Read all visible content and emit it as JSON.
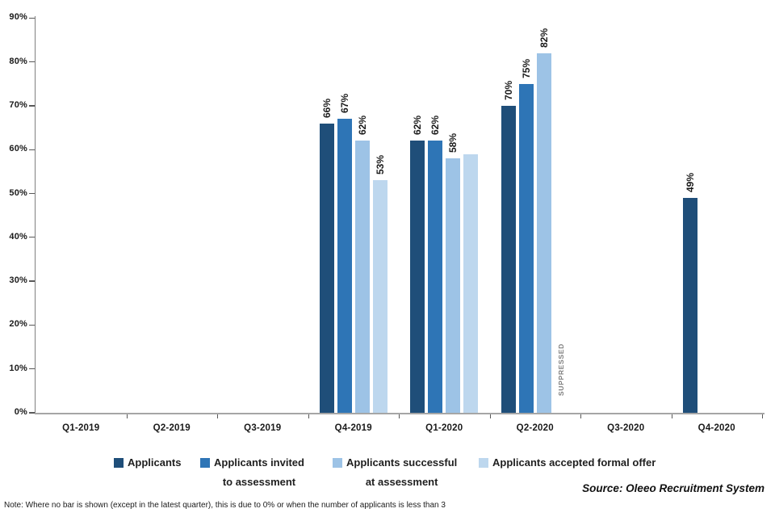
{
  "chart_data": {
    "type": "bar",
    "title": "",
    "xlabel": "",
    "ylabel": "",
    "categories": [
      "Q1-2019",
      "Q2-2019",
      "Q3-2019",
      "Q4-2019",
      "Q1-2020",
      "Q2-2020",
      "Q3-2020",
      "Q4-2020"
    ],
    "series": [
      {
        "name": "Applicants",
        "color": "#1F4E79",
        "values": [
          null,
          null,
          null,
          66,
          62,
          70,
          null,
          49
        ],
        "labels": [
          null,
          null,
          null,
          "66%",
          "62%",
          "70%",
          null,
          "49%"
        ]
      },
      {
        "name": "Applicants invited to assessment",
        "color": "#2E75B6",
        "values": [
          null,
          null,
          null,
          67,
          62,
          75,
          null,
          null
        ],
        "labels": [
          null,
          null,
          null,
          "67%",
          "62%",
          "75%",
          null,
          null
        ]
      },
      {
        "name": "Applicants successful at assessment",
        "color": "#9DC3E6",
        "values": [
          null,
          null,
          null,
          62,
          58,
          82,
          null,
          null
        ],
        "labels": [
          null,
          null,
          null,
          "62%",
          "58%",
          "82%",
          null,
          null
        ]
      },
      {
        "name": "Applicants accepted formal offer",
        "color": "#BDD7EE",
        "values": [
          null,
          null,
          null,
          53,
          59,
          null,
          null,
          null
        ],
        "labels": [
          null,
          null,
          null,
          "53%",
          "",
          null,
          null,
          null
        ]
      }
    ],
    "annotations": [
      {
        "text": "SUPPRESSED",
        "category": "Q2-2020",
        "series_index": 3,
        "color": "#808080"
      }
    ],
    "y_axis": {
      "min": 0,
      "max": 90,
      "tick_step": 10,
      "ticks": [
        "0%",
        "10%",
        "20%",
        "30%",
        "40%",
        "50%",
        "60%",
        "70%",
        "80%",
        "90%"
      ],
      "grid": false
    },
    "legend_position": "bottom"
  },
  "legend": {
    "items": [
      {
        "label": "Applicants",
        "line2": "",
        "color": "#1F4E79"
      },
      {
        "label": "Applicants invited",
        "line2": "to assessment",
        "color": "#2E75B6"
      },
      {
        "label": "Applicants successful",
        "line2": "at assessment",
        "color": "#9DC3E6"
      },
      {
        "label": "Applicants accepted formal offer",
        "line2": "",
        "color": "#BDD7EE"
      }
    ]
  },
  "source": "Source: Oleeo Recruitment System",
  "note": "Note: Where no bar is shown (except in the latest quarter), this is due to 0% or when the number of applicants is less than 3"
}
